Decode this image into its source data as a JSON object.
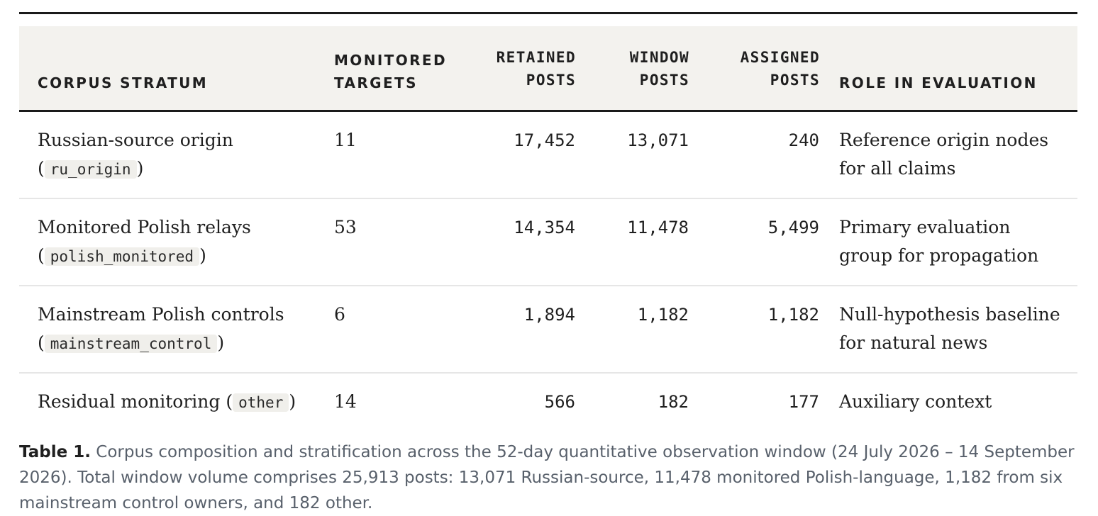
{
  "table": {
    "headers": {
      "stratum": "CORPUS STRATUM",
      "targets_line1": "MONITORED",
      "targets_line2": "TARGETS",
      "retained_line1": "RETAINED",
      "retained_line2": "POSTS",
      "window_line1": "WINDOW",
      "window_line2": "POSTS",
      "assigned_line1": "ASSIGNED",
      "assigned_line2": "POSTS",
      "role": "ROLE IN EVALUATION"
    },
    "rows": [
      {
        "stratum": "Russian-source origin",
        "code": "ru_origin",
        "targets": "11",
        "retained": "17,452",
        "window": "13,071",
        "assigned": "240",
        "role": "Reference origin nodes for all claims"
      },
      {
        "stratum": "Monitored Polish relays",
        "code": "polish_monitored",
        "targets": "53",
        "retained": "14,354",
        "window": "11,478",
        "assigned": "5,499",
        "role": "Primary evaluation group for propagation"
      },
      {
        "stratum": "Mainstream Polish controls",
        "code": "mainstream_control",
        "targets": "6",
        "retained": "1,894",
        "window": "1,182",
        "assigned": "1,182",
        "role": "Null-hypothesis baseline for natural news"
      },
      {
        "stratum": "Residual monitoring",
        "code": "other",
        "targets": "14",
        "retained": "566",
        "window": "182",
        "assigned": "177",
        "role": "Auxiliary context"
      }
    ]
  },
  "caption": {
    "label": "Table 1.",
    "text": "Corpus composition and stratification across the 52-day quantitative observation window (24 July 2026 – 14 September 2026). Total window volume comprises 25,913 posts: 13,071 Russian-source, 11,478 monitored Polish-language, 1,182 from six mainstream control owners, and 182 other."
  },
  "colors": {
    "header_bg": "#f3f2ee",
    "rule": "#1a1a1a",
    "caption_text": "#58606b",
    "code_bg": "#f0efeb"
  }
}
